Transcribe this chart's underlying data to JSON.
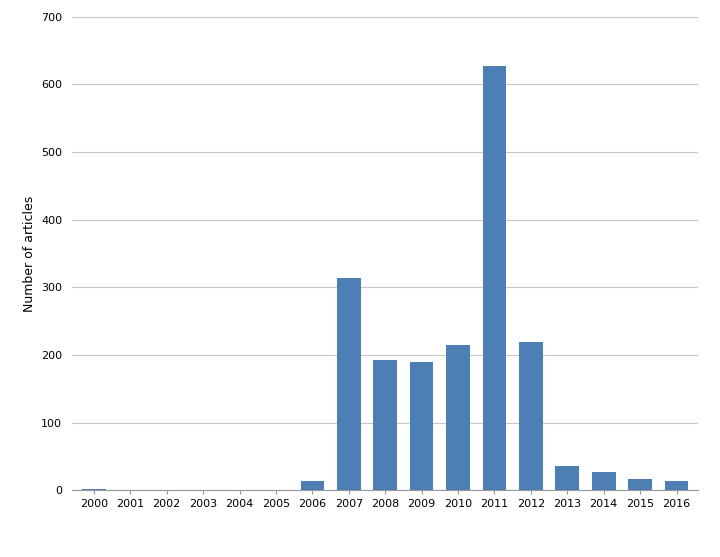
{
  "years": [
    2000,
    2001,
    2002,
    2003,
    2004,
    2005,
    2006,
    2007,
    2008,
    2009,
    2010,
    2011,
    2012,
    2013,
    2014,
    2015,
    2016
  ],
  "values": [
    1,
    0,
    0,
    0,
    0,
    0,
    13,
    314,
    193,
    190,
    215,
    627,
    219,
    35,
    27,
    17,
    14
  ],
  "bar_color": "#4d7fb5",
  "ylabel": "Number of articles",
  "ylim": [
    0,
    700
  ],
  "yticks": [
    0,
    100,
    200,
    300,
    400,
    500,
    600,
    700
  ],
  "background_color": "#ffffff",
  "grid_color": "#c8c8c8",
  "bar_width": 0.65,
  "tick_fontsize": 8,
  "ylabel_fontsize": 9
}
